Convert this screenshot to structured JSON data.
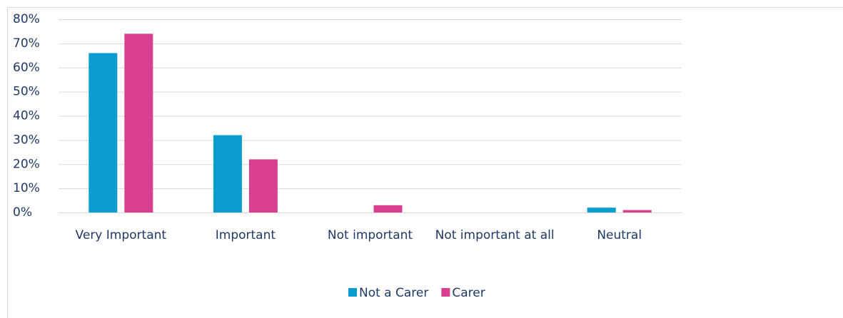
{
  "chart_data": {
    "type": "bar",
    "categories": [
      "Very Important",
      "Important",
      "Not important",
      "Not important at all",
      "Neutral"
    ],
    "series": [
      {
        "name": "Not a Carer",
        "color": "#0a9bcf",
        "values": [
          66,
          32,
          0,
          0,
          2
        ]
      },
      {
        "name": "Carer",
        "color": "#d93f8f",
        "values": [
          74,
          22,
          3,
          0,
          1
        ]
      }
    ],
    "ylim": [
      0,
      80
    ],
    "yticks": [
      {
        "value": 0,
        "label": "0%"
      },
      {
        "value": 10,
        "label": "10%"
      },
      {
        "value": 20,
        "label": "20%"
      },
      {
        "value": 30,
        "label": "30%"
      },
      {
        "value": 40,
        "label": "40%"
      },
      {
        "value": 50,
        "label": "50%"
      },
      {
        "value": 60,
        "label": "60%"
      },
      {
        "value": 70,
        "label": "70%"
      },
      {
        "value": 80,
        "label": "80%"
      }
    ],
    "grid": true,
    "legend": "bottom"
  }
}
